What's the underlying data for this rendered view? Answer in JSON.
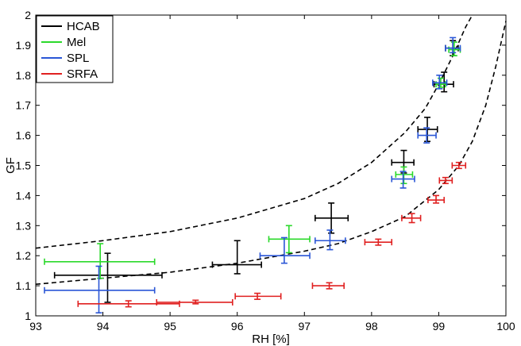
{
  "chart_data": {
    "type": "scatter",
    "title": "",
    "xlabel": "RH [%]",
    "ylabel": "GF",
    "xlim": [
      93,
      100
    ],
    "ylim": [
      1,
      2
    ],
    "xticks": [
      93,
      94,
      95,
      96,
      97,
      98,
      99,
      100
    ],
    "yticks": [
      1,
      1.1,
      1.2,
      1.3,
      1.4,
      1.5,
      1.6,
      1.7,
      1.8,
      1.9,
      2
    ],
    "xtick_labels": [
      "93",
      "94",
      "95",
      "96",
      "97",
      "98",
      "99",
      "100"
    ],
    "ytick_labels": [
      "1",
      "1.1",
      "1.2",
      "1.3",
      "1.4",
      "1.5",
      "1.6",
      "1.7",
      "1.8",
      "1.9",
      "2"
    ],
    "legend_position": "top-left",
    "grid": false,
    "series": [
      {
        "name": "HCAB",
        "color": "#000000",
        "points": [
          {
            "x": 94.07,
            "y": 1.135,
            "xerr": [
              93.28,
              94.88
            ],
            "yerr": [
              1.045,
              1.208
            ]
          },
          {
            "x": 96.0,
            "y": 1.17,
            "xerr": [
              95.63,
              96.36
            ],
            "yerr": [
              1.14,
              1.25
            ]
          },
          {
            "x": 97.4,
            "y": 1.325,
            "xerr": [
              97.16,
              97.65
            ],
            "yerr": [
              1.275,
              1.375
            ]
          },
          {
            "x": 98.48,
            "y": 1.51,
            "xerr": [
              98.3,
              98.63
            ],
            "yerr": [
              1.475,
              1.55
            ]
          },
          {
            "x": 98.83,
            "y": 1.62,
            "xerr": [
              98.69,
              98.98
            ],
            "yerr": [
              1.58,
              1.66
            ]
          },
          {
            "x": 99.08,
            "y": 1.77,
            "xerr": [
              98.93,
              99.22
            ],
            "yerr": [
              1.745,
              1.81
            ]
          },
          {
            "x": 99.21,
            "y": 1.89,
            "xerr": [
              99.1,
              99.29
            ],
            "yerr": [
              1.865,
              1.915
            ]
          }
        ]
      },
      {
        "name": "Mel",
        "color": "#2bd92b",
        "points": [
          {
            "x": 93.96,
            "y": 1.18,
            "xerr": [
              93.13,
              94.77
            ],
            "yerr": [
              1.125,
              1.24
            ]
          },
          {
            "x": 96.77,
            "y": 1.255,
            "xerr": [
              96.47,
              97.08
            ],
            "yerr": [
              1.21,
              1.3
            ]
          },
          {
            "x": 98.48,
            "y": 1.47,
            "xerr": [
              98.36,
              98.61
            ],
            "yerr": [
              1.44,
              1.495
            ]
          },
          {
            "x": 99.03,
            "y": 1.77,
            "xerr": [
              98.96,
              99.1
            ],
            "yerr": [
              1.76,
              1.79
            ]
          },
          {
            "x": 99.23,
            "y": 1.885,
            "xerr": [
              99.15,
              99.32
            ],
            "yerr": [
              1.865,
              1.91
            ]
          }
        ]
      },
      {
        "name": "SPL",
        "color": "#2a56d6",
        "points": [
          {
            "x": 93.94,
            "y": 1.085,
            "xerr": [
              93.13,
              94.77
            ],
            "yerr": [
              1.01,
              1.165
            ]
          },
          {
            "x": 96.7,
            "y": 1.2,
            "xerr": [
              96.34,
              97.08
            ],
            "yerr": [
              1.175,
              1.26
            ]
          },
          {
            "x": 97.38,
            "y": 1.25,
            "xerr": [
              97.16,
              97.61
            ],
            "yerr": [
              1.22,
              1.285
            ]
          },
          {
            "x": 98.47,
            "y": 1.455,
            "xerr": [
              98.3,
              98.64
            ],
            "yerr": [
              1.425,
              1.48
            ]
          },
          {
            "x": 98.82,
            "y": 1.6,
            "xerr": [
              98.69,
              98.96
            ],
            "yerr": [
              1.575,
              1.625
            ]
          },
          {
            "x": 99.01,
            "y": 1.775,
            "xerr": [
              98.91,
              99.12
            ],
            "yerr": [
              1.755,
              1.8
            ]
          },
          {
            "x": 99.21,
            "y": 1.89,
            "xerr": [
              99.1,
              99.32
            ],
            "yerr": [
              1.875,
              1.925
            ]
          }
        ]
      },
      {
        "name": "SRFA",
        "color": "#e02020",
        "points": [
          {
            "x": 94.38,
            "y": 1.04,
            "xerr": [
              93.63,
              95.14
            ],
            "yerr": [
              1.03,
              1.05
            ]
          },
          {
            "x": 95.38,
            "y": 1.045,
            "xerr": [
              94.8,
              95.93
            ],
            "yerr": [
              1.04,
              1.052
            ]
          },
          {
            "x": 96.3,
            "y": 1.065,
            "xerr": [
              95.97,
              96.65
            ],
            "yerr": [
              1.055,
              1.075
            ]
          },
          {
            "x": 97.37,
            "y": 1.1,
            "xerr": [
              97.12,
              97.59
            ],
            "yerr": [
              1.09,
              1.11
            ]
          },
          {
            "x": 98.1,
            "y": 1.245,
            "xerr": [
              97.9,
              98.3
            ],
            "yerr": [
              1.235,
              1.255
            ]
          },
          {
            "x": 98.6,
            "y": 1.325,
            "xerr": [
              98.45,
              98.73
            ],
            "yerr": [
              1.31,
              1.34
            ]
          },
          {
            "x": 98.96,
            "y": 1.385,
            "xerr": [
              98.84,
              99.08
            ],
            "yerr": [
              1.375,
              1.4
            ]
          },
          {
            "x": 99.1,
            "y": 1.45,
            "xerr": [
              99.01,
              99.2
            ],
            "yerr": [
              1.44,
              1.46
            ]
          },
          {
            "x": 99.3,
            "y": 1.5,
            "xerr": [
              99.2,
              99.4
            ],
            "yerr": [
              1.49,
              1.51
            ]
          }
        ]
      }
    ],
    "curves": [
      {
        "style": "dashed",
        "color": "#000000",
        "x": [
          93.0,
          94.0,
          95.0,
          96.0,
          97.0,
          97.5,
          98.0,
          98.5,
          98.8,
          99.0,
          99.2,
          99.4,
          99.5
        ],
        "y": [
          1.225,
          1.25,
          1.28,
          1.325,
          1.39,
          1.44,
          1.51,
          1.61,
          1.69,
          1.77,
          1.86,
          1.96,
          2.0
        ]
      },
      {
        "style": "dashed",
        "color": "#000000",
        "x": [
          93.0,
          94.0,
          95.0,
          96.0,
          97.0,
          97.5,
          98.0,
          98.5,
          99.0,
          99.3,
          99.5,
          99.7,
          99.85,
          100.0
        ],
        "y": [
          1.105,
          1.125,
          1.145,
          1.175,
          1.215,
          1.24,
          1.28,
          1.33,
          1.42,
          1.5,
          1.58,
          1.7,
          1.83,
          1.98
        ]
      }
    ]
  }
}
